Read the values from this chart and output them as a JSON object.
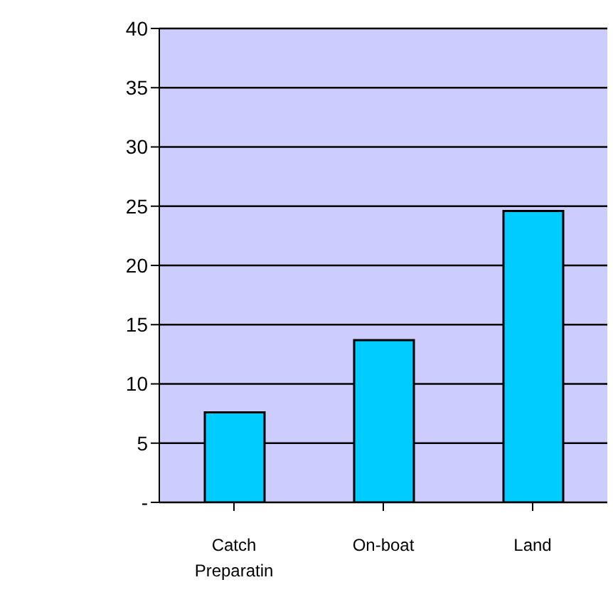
{
  "chart_data": {
    "type": "bar",
    "categories": [
      "Catch Preparatin",
      "On-boat",
      "Land"
    ],
    "values": [
      7.6,
      13.7,
      24.6
    ],
    "color": "#00ccff",
    "ylim": [
      0,
      40
    ],
    "yticks": [
      {
        "value": 0,
        "label": "-"
      },
      5,
      10,
      15,
      20,
      25,
      30,
      35,
      40
    ],
    "grid": "y"
  }
}
